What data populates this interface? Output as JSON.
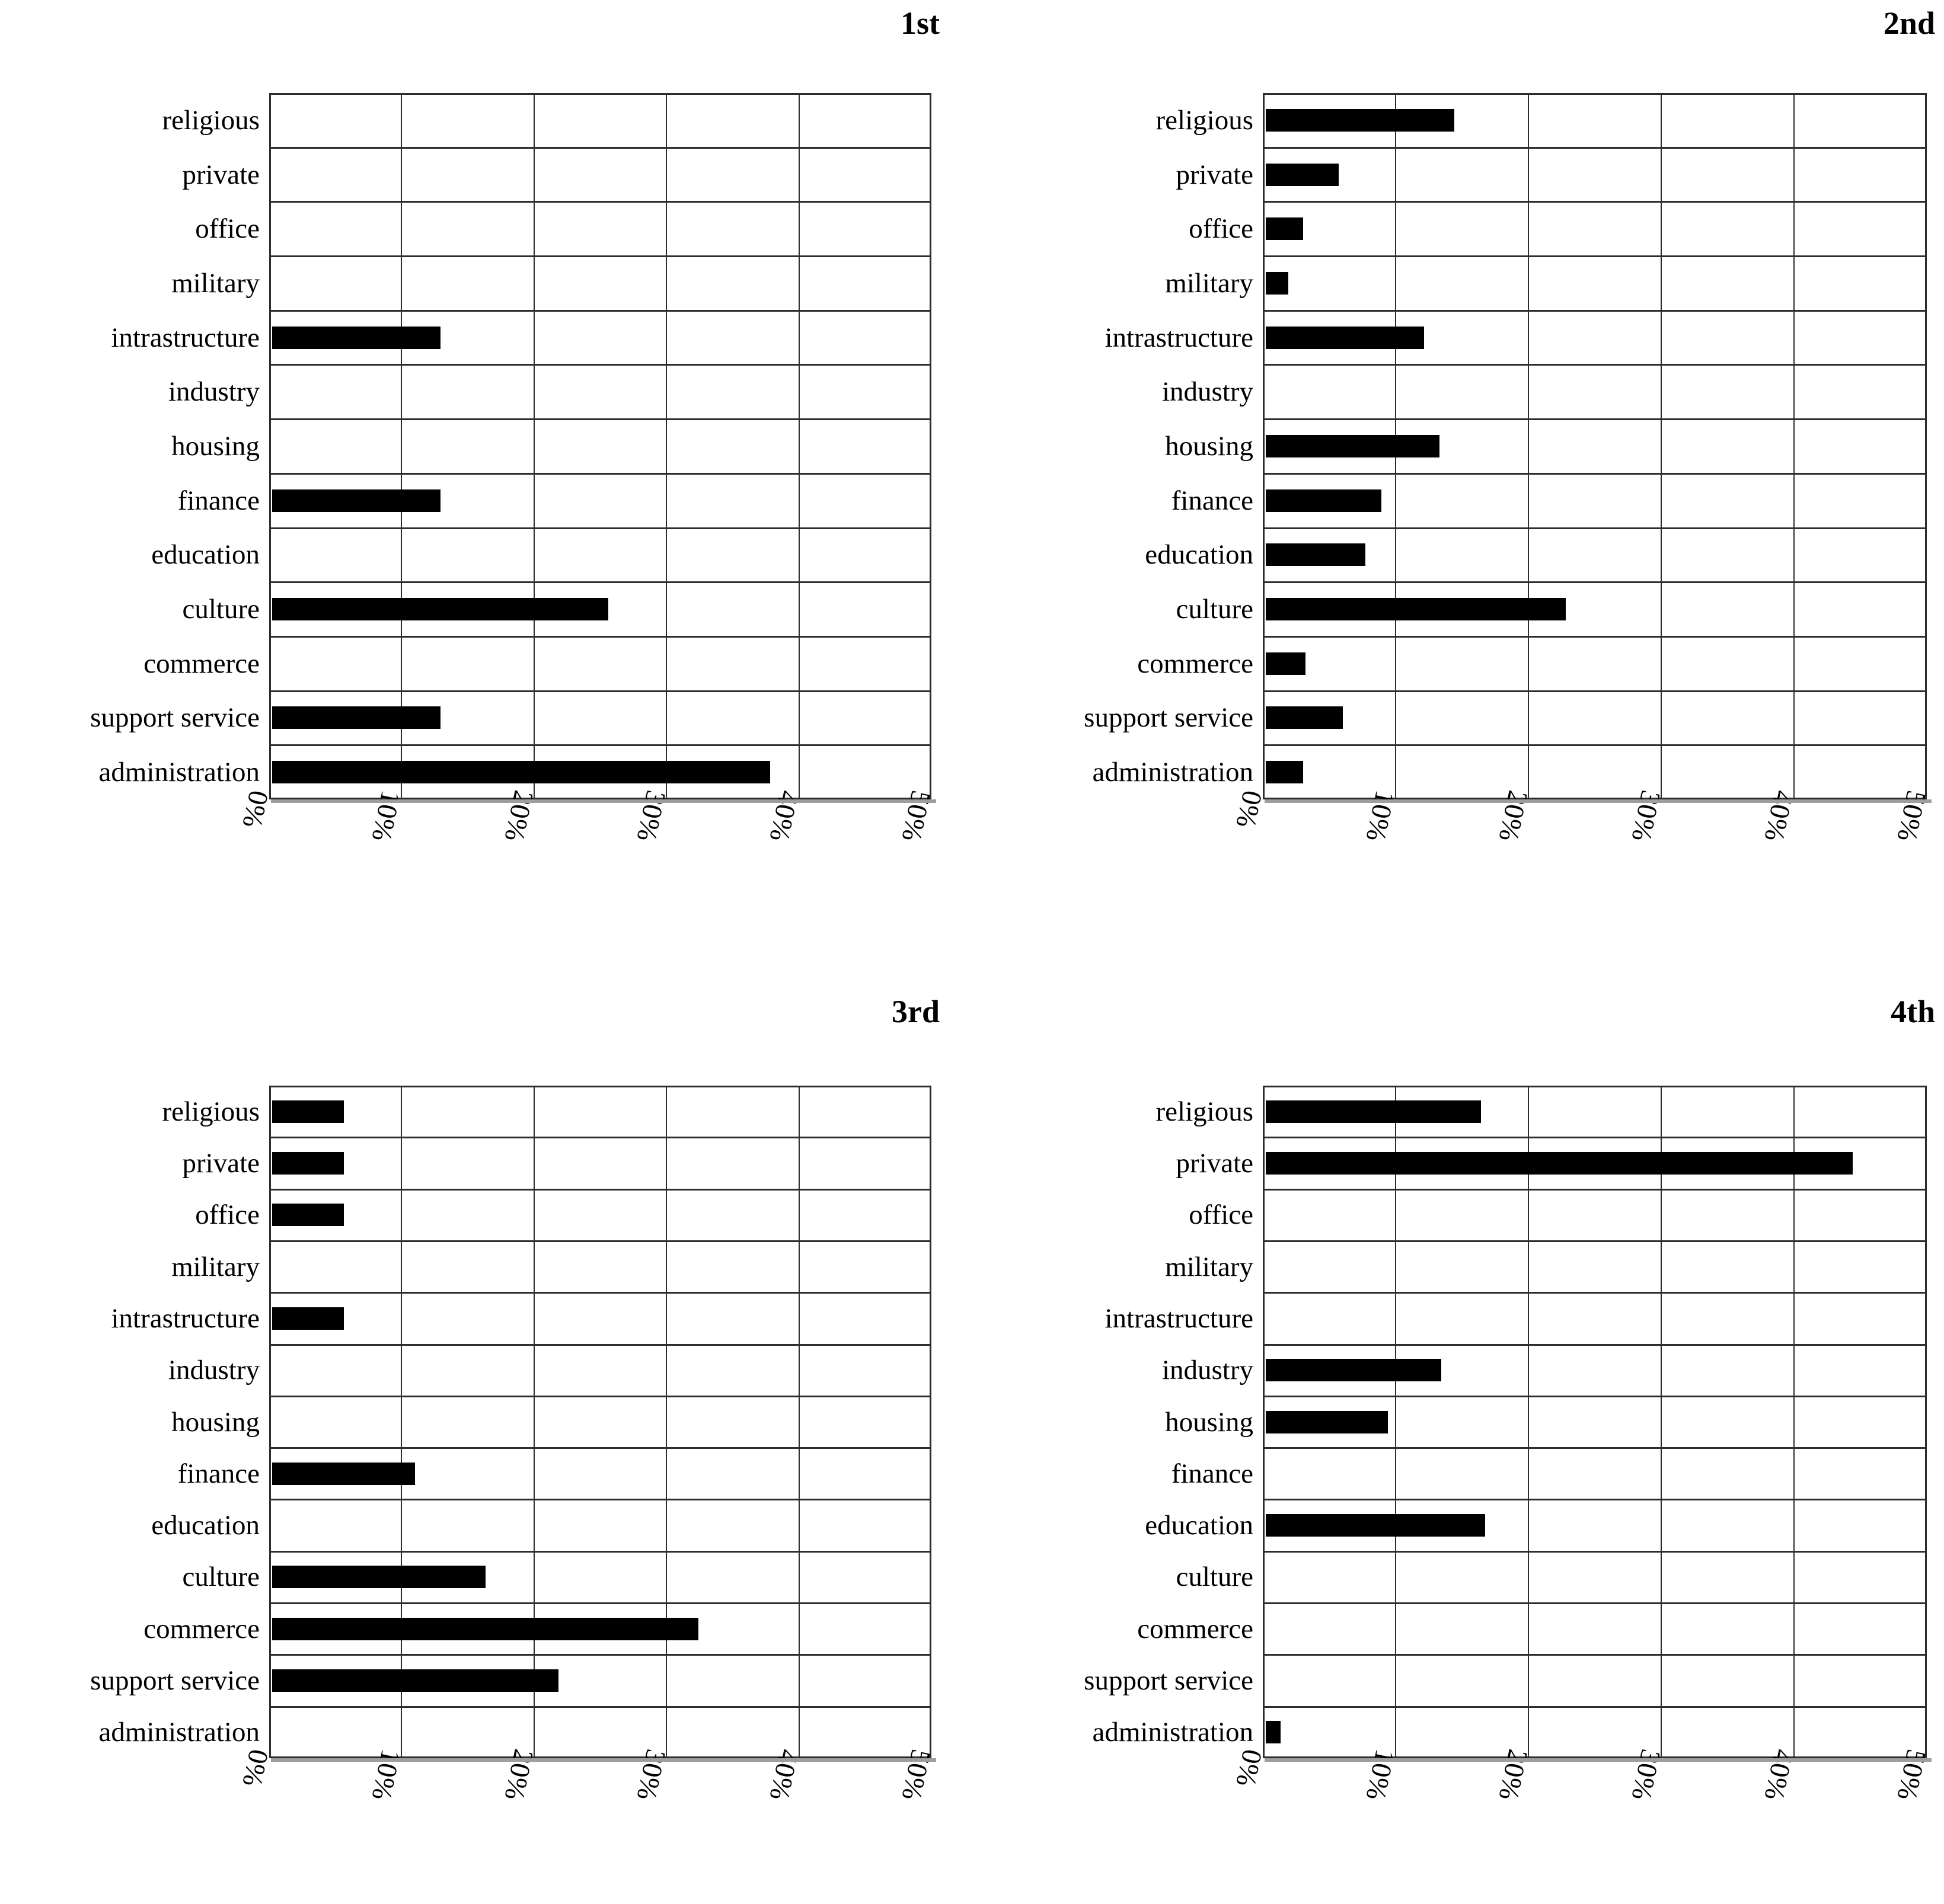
{
  "page": {
    "background": "#ffffff",
    "text_color": "#000000",
    "grid_color": "#2d2d2d",
    "bar_color": "#000000"
  },
  "chart_data": [
    {
      "type": "bar",
      "orientation": "horizontal",
      "title": "1st",
      "categories": [
        "religious",
        "private",
        "office",
        "military",
        "intrastructure",
        "industry",
        "housing",
        "finance",
        "education",
        "culture",
        "commerce",
        "support service",
        "administration"
      ],
      "values": [
        0,
        0,
        0,
        0,
        12.7,
        0,
        0,
        12.7,
        0,
        25.4,
        0,
        12.7,
        37.6
      ],
      "xlim": [
        0,
        50
      ],
      "x_tick_step": 10,
      "x_tick_labels": [
        "0%",
        "10%",
        "20%",
        "30%",
        "40%",
        "50%"
      ],
      "grid": true,
      "legend": "none",
      "bar_color": "#000000"
    },
    {
      "type": "bar",
      "orientation": "horizontal",
      "title": "2nd",
      "categories": [
        "religious",
        "private",
        "office",
        "military",
        "intrastructure",
        "industry",
        "housing",
        "finance",
        "education",
        "culture",
        "commerce",
        "support service",
        "administration"
      ],
      "values": [
        14.2,
        5.5,
        2.8,
        1.7,
        11.9,
        0,
        13.1,
        8.7,
        7.5,
        22.6,
        3.0,
        5.8,
        2.8
      ],
      "xlim": [
        0,
        50
      ],
      "x_tick_step": 10,
      "x_tick_labels": [
        "0%",
        "10%",
        "20%",
        "30%",
        "40%",
        "50%"
      ],
      "grid": true,
      "legend": "none",
      "bar_color": "#000000"
    },
    {
      "type": "bar",
      "orientation": "horizontal",
      "title": "3rd",
      "categories": [
        "religious",
        "private",
        "office",
        "military",
        "intrastructure",
        "industry",
        "housing",
        "finance",
        "education",
        "culture",
        "commerce",
        "support service",
        "administration"
      ],
      "values": [
        5.4,
        5.4,
        5.4,
        0,
        5.4,
        0,
        0,
        10.8,
        0,
        16.1,
        32.2,
        21.6,
        0
      ],
      "xlim": [
        0,
        50
      ],
      "x_tick_step": 10,
      "x_tick_labels": [
        "0%",
        "10%",
        "20%",
        "30%",
        "40%",
        "50%"
      ],
      "grid": true,
      "legend": "none",
      "bar_color": "#000000"
    },
    {
      "type": "bar",
      "orientation": "horizontal",
      "title": "4th",
      "categories": [
        "religious",
        "private",
        "office",
        "military",
        "intrastructure",
        "industry",
        "housing",
        "finance",
        "education",
        "culture",
        "commerce",
        "support service",
        "administration"
      ],
      "values": [
        16.2,
        44.2,
        0,
        0,
        0,
        13.2,
        9.2,
        0,
        16.5,
        0,
        0,
        0,
        1.1
      ],
      "xlim": [
        0,
        50
      ],
      "x_tick_step": 10,
      "x_tick_labels": [
        "0%",
        "10%",
        "20%",
        "30%",
        "40%",
        "50%"
      ],
      "grid": true,
      "legend": "none",
      "bar_color": "#000000"
    }
  ]
}
